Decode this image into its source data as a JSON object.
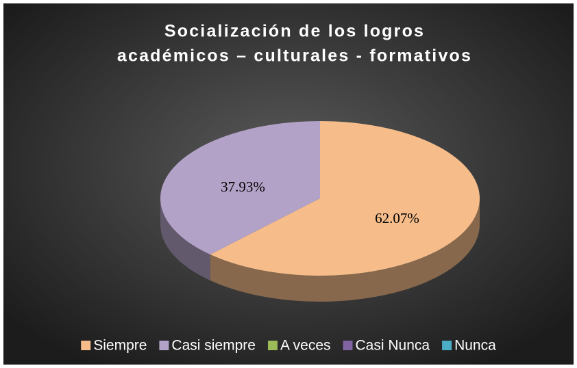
{
  "chart_data": {
    "type": "pie3d",
    "title": [
      "Socialización de los logros",
      "académicos – culturales - formativos"
    ],
    "categories": [
      "Siempre",
      "Casi siempre",
      "A veces",
      "Casi Nunca",
      "Nunca"
    ],
    "values": [
      62.07,
      37.93,
      0,
      0,
      0
    ],
    "value_labels": [
      "62.07%",
      "37.93%",
      null,
      null,
      null
    ],
    "colors": [
      "#f6bd8b",
      "#b3a2c7",
      "#9bbb59",
      "#8064a2",
      "#4bacc6"
    ],
    "legend": "bottom"
  }
}
